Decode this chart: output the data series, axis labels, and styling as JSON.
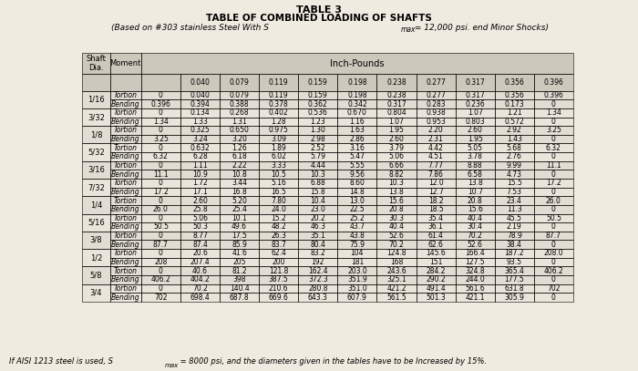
{
  "title1": "TABLE 3",
  "title2": "TABLE OF COMBINED LOADING OF SHAFTS",
  "title3_pre": "(Based on #303 stainless Steel With S",
  "title3_sub": "max",
  "title3_post": " = 12,000 psi. end Minor Shocks)",
  "footer_pre": "If AISI 1213 steel is used, S",
  "footer_sub": "max",
  "footer_post": " = 8000 psi, and the diameters given in the tables have to be Increased by 15%.",
  "col_vals": [
    "0.040",
    "0.079",
    "0.119",
    "0.159",
    "0.198",
    "0.238",
    "0.277",
    "0.317",
    "0.356",
    "0.396"
  ],
  "shaft_diameters": [
    "1/16",
    "3/32",
    "1/8",
    "5/32",
    "3/16",
    "7/32",
    "1/4",
    "5/16",
    "3/8",
    "1/2",
    "5/8",
    "3/4"
  ],
  "data": {
    "1/16": {
      "Tortion": [
        "0",
        "0.040",
        "0.079",
        "0.119",
        "0.159",
        "0.198",
        "0.238",
        "0.277",
        "0.317",
        "0.356",
        "0.396"
      ],
      "Bending": [
        "0.396",
        "0.394",
        "0.388",
        "0.378",
        "0.362",
        "0.342",
        "0.317",
        "0.283",
        "0.236",
        "0.173",
        "0"
      ]
    },
    "3/32": {
      "Tortion": [
        "0",
        "0.134",
        "0.268",
        "0.402",
        "0.536",
        "0.670",
        "0.804",
        "0.938",
        "1.07",
        "1.21",
        "1.34"
      ],
      "Bending": [
        "1.34",
        "1.33",
        "1.31",
        "1.28",
        "1.23",
        "1.16",
        "1.07",
        "0.953",
        "0.803",
        "0.572",
        "0"
      ]
    },
    "1/8": {
      "Tortion": [
        "0",
        "0.325",
        "0.650",
        "0.975",
        "1.30",
        "1.63",
        "1.95",
        "2.20",
        "2.60",
        "2.92",
        "3.25"
      ],
      "Bending": [
        "3.25",
        "3.24",
        "3.20",
        "3.09",
        "2.98",
        "2.86",
        "2.60",
        "2.31",
        "1.95",
        "1.43",
        "0"
      ]
    },
    "5/32": {
      "Tortion": [
        "0",
        "0.632",
        "1.26",
        "1.89",
        "2.52",
        "3.16",
        "3.79",
        "4.42",
        "5.05",
        "5.68",
        "6.32"
      ],
      "Bending": [
        "6.32",
        "6.28",
        "6.18",
        "6.02",
        "5.79",
        "5.47",
        "5.06",
        "4.51",
        "3.78",
        "2.76",
        "0"
      ]
    },
    "3/16": {
      "Tortion": [
        "0",
        "1.11",
        "2.22",
        "3.33",
        "4.44",
        "5.55",
        "6.66",
        "7.77",
        "8.88",
        "9.99",
        "11.1"
      ],
      "Bending": [
        "11.1",
        "10.9",
        "10.8",
        "10.5",
        "10.3",
        "9.56",
        "8.82",
        "7.86",
        "6.58",
        "4.73",
        "0"
      ]
    },
    "7/32": {
      "Tortion": [
        "0",
        "1.72",
        "3.44",
        "5.16",
        "6.88",
        "8.60",
        "10.3",
        "12.0",
        "13.8",
        "15.5",
        "17.2"
      ],
      "Bending": [
        "17.2",
        "17.1",
        "16.8",
        "16.5",
        "15.8",
        "14.8",
        "13.8",
        "12.7",
        "10.7",
        "7.53",
        "0"
      ]
    },
    "1/4": {
      "Tortion": [
        "0",
        "2.60",
        "5.20",
        "7.80",
        "10.4",
        "13.0",
        "15.6",
        "18.2",
        "20.8",
        "23.4",
        "26.0"
      ],
      "Bending": [
        "26.0",
        "25.8",
        "25.4",
        "24.0",
        "23.0",
        "22.5",
        "20.8",
        "18.5",
        "15.6",
        "11.3",
        "0"
      ]
    },
    "5/16": {
      "Tortion": [
        "0",
        "5.06",
        "10.1",
        "15.2",
        "20.2",
        "25.2",
        "30.3",
        "35.4",
        "40.4",
        "45.5",
        "50.5"
      ],
      "Bending": [
        "50.5",
        "50.3",
        "49.6",
        "48.2",
        "46.3",
        "43.7",
        "40.4",
        "36.1",
        "30.4",
        "2.19",
        "0"
      ]
    },
    "3/8": {
      "Tortion": [
        "0",
        "8.77",
        "17.5",
        "26.3",
        "35.1",
        "43.8",
        "52.6",
        "61.4",
        "70.2",
        "78.9",
        "87.7"
      ],
      "Bending": [
        "87.7",
        "87.4",
        "85.9",
        "83.7",
        "80.4",
        "75.9",
        "70.2",
        "62.6",
        "52.6",
        "38.4",
        "0"
      ]
    },
    "1/2": {
      "Tortion": [
        "0",
        "20.6",
        "41.6",
        "62.4",
        "83.2",
        "104",
        "124.8",
        "145.6",
        "166.4",
        "187.2",
        "208.0"
      ],
      "Bending": [
        "208",
        "207.4",
        "205",
        "200",
        "192",
        "181",
        "168",
        "151",
        "127.5",
        "93.5",
        "0"
      ]
    },
    "5/8": {
      "Tortion": [
        "0",
        "40.6",
        "81.2",
        "121.8",
        "162.4",
        "203.0",
        "243.6",
        "284.2",
        "324.8",
        "365.4",
        "406.2"
      ],
      "Bending": [
        "406.2",
        "404.2",
        "398",
        "387.5",
        "372.3",
        "351.9",
        "325.1",
        "290.2",
        "244.0",
        "177.5",
        "0"
      ]
    },
    "3/4": {
      "Tortion": [
        "0",
        "70.2",
        "140.4",
        "210.6",
        "280.8",
        "351.0",
        "421.2",
        "491.4",
        "561.6",
        "631.8",
        "702"
      ],
      "Bending": [
        "702",
        "698.4",
        "687.8",
        "669.6",
        "643.3",
        "607.9",
        "561.5",
        "501.3",
        "421.1",
        "305.9",
        "0"
      ]
    }
  },
  "bg_color": "#f0ebe0",
  "header_bg": "#cdc8bc",
  "row_bg1": "#e2ddd2",
  "row_bg2": "#eae5da"
}
